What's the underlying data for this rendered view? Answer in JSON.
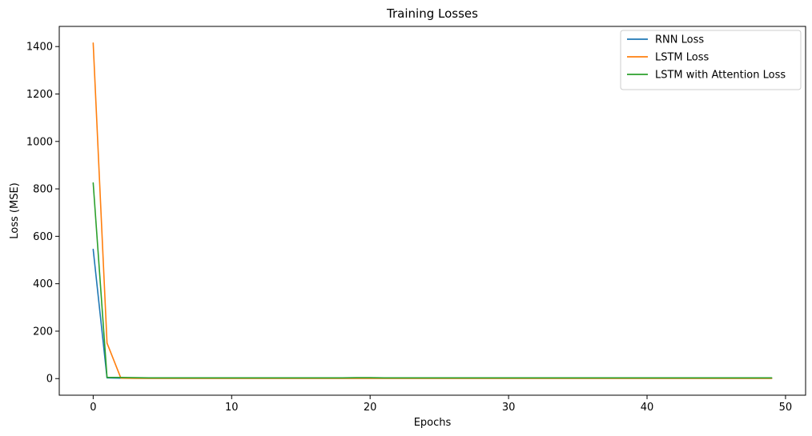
{
  "chart_data": {
    "type": "line",
    "title": "Training Losses",
    "xlabel": "Epochs",
    "ylabel": "Loss (MSE)",
    "xlim": [
      -2.45,
      51.45
    ],
    "ylim": [
      -70,
      1485
    ],
    "xticks": [
      0,
      10,
      20,
      30,
      40,
      50
    ],
    "yticks": [
      0,
      200,
      400,
      600,
      800,
      1000,
      1200,
      1400
    ],
    "grid": false,
    "legend_position": "top-right",
    "x": [
      0,
      1,
      2,
      3,
      4,
      5,
      6,
      7,
      8,
      9,
      10,
      11,
      12,
      13,
      14,
      15,
      16,
      17,
      18,
      19,
      20,
      21,
      22,
      23,
      24,
      25,
      26,
      27,
      28,
      29,
      30,
      31,
      32,
      33,
      34,
      35,
      36,
      37,
      38,
      39,
      40,
      41,
      42,
      43,
      44,
      45,
      46,
      47,
      48,
      49
    ],
    "series": [
      {
        "name": "RNN Loss",
        "color": "#1f77b4",
        "values": [
          545,
          3,
          2,
          2,
          1.5,
          1.5,
          1.5,
          1.5,
          1.5,
          1.5,
          1.5,
          1.5,
          1.5,
          1.5,
          1.5,
          1.5,
          1.5,
          1.5,
          1.5,
          1.5,
          1.5,
          1.5,
          1.5,
          1.5,
          1.5,
          1.5,
          1.5,
          1.5,
          1.5,
          1.5,
          1.5,
          1.5,
          1.5,
          1.5,
          1.5,
          1.5,
          1.5,
          1.5,
          1.5,
          1.5,
          1.5,
          1.5,
          1.5,
          1.5,
          1.5,
          1.5,
          1.5,
          1.5,
          1.5,
          1.5
        ]
      },
      {
        "name": "LSTM Loss",
        "color": "#ff7f0e",
        "values": [
          1415,
          150,
          2,
          1,
          1,
          1,
          1,
          1,
          1,
          1,
          1,
          1,
          1,
          1,
          1,
          1,
          1,
          1,
          1,
          1,
          1,
          1,
          1,
          1,
          1,
          1,
          1,
          1,
          1,
          1,
          1,
          1,
          1,
          1,
          1,
          1,
          1,
          1,
          1,
          1,
          1,
          1,
          1,
          1,
          1,
          1,
          1,
          1,
          1,
          1
        ]
      },
      {
        "name": "LSTM with Attention Loss",
        "color": "#2ca02c",
        "values": [
          825,
          5,
          5,
          4,
          3,
          3,
          3,
          3,
          3,
          3,
          3,
          3,
          3,
          3,
          3,
          3,
          3,
          3,
          3,
          4,
          4,
          3,
          3,
          3,
          3,
          3,
          3,
          3,
          3,
          3,
          3,
          3,
          3,
          3,
          3,
          3,
          3,
          3,
          3,
          3,
          3,
          3,
          3,
          3,
          3,
          3,
          3,
          3,
          3,
          3
        ]
      }
    ]
  }
}
